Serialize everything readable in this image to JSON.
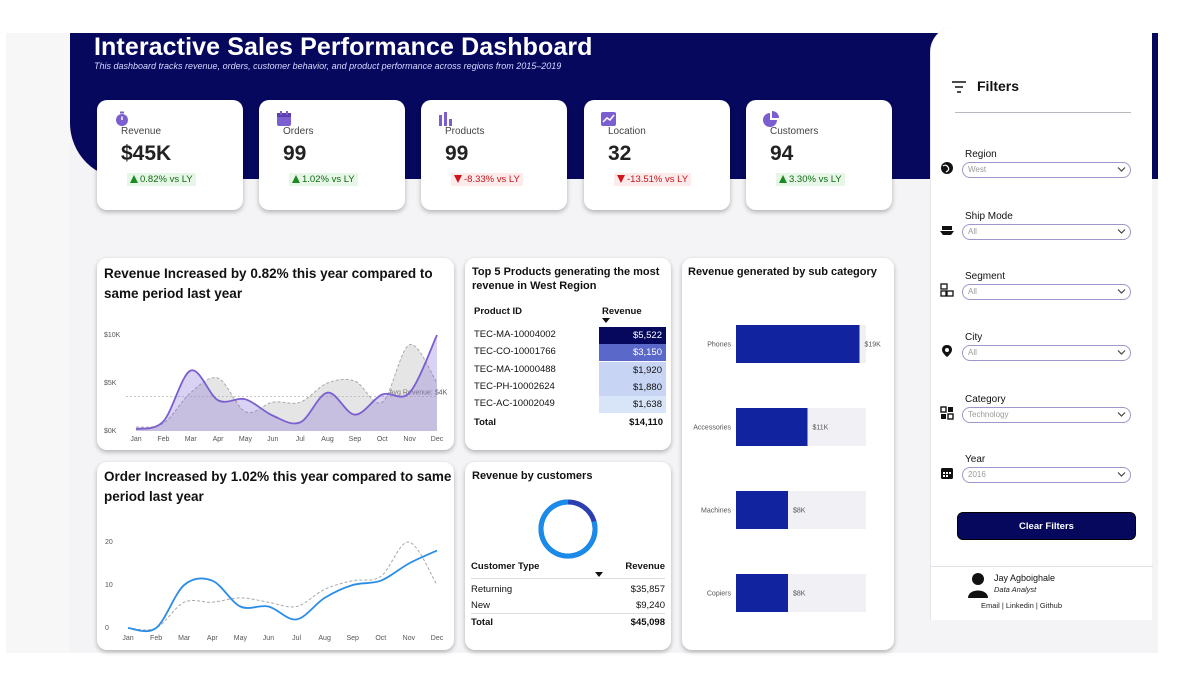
{
  "header": {
    "title": "Interactive Sales Performance Dashboard",
    "subtitle": "This dashboard tracks revenue, orders, customer behavior, and product performance across regions from 2015–2019"
  },
  "kpis": [
    {
      "label": "Revenue",
      "value": "$45K",
      "delta": "0.82% vs LY",
      "trend": "up",
      "icon": "stopwatch-icon"
    },
    {
      "label": "Orders",
      "value": "99",
      "delta": "1.02% vs LY",
      "trend": "up",
      "icon": "calendar-icon"
    },
    {
      "label": "Products",
      "value": "99",
      "delta": "-8.33% vs LY",
      "trend": "down",
      "icon": "bar-chart-icon"
    },
    {
      "label": "Location",
      "value": "32",
      "delta": "-13.51% vs LY",
      "trend": "down",
      "icon": "map-trend-icon"
    },
    {
      "label": "Customers",
      "value": "94",
      "delta": "3.30% vs LY",
      "trend": "up",
      "icon": "pie-chart-icon"
    }
  ],
  "colors": {
    "navy": "#06085e",
    "purple": "#7b5fd0",
    "blue_line": "#2b8de5",
    "bar_blue": "#1223a0",
    "up_green": "#0c6b12",
    "down_red": "#c0181c"
  },
  "revenue_chart": {
    "title": "Revenue Increased by 0.82% this year compared to same period last year",
    "avg_label": "Avg Revenue: $4K"
  },
  "orders_chart": {
    "title": "Order Increased by 1.02% this year compared to same period last year"
  },
  "top_products": {
    "title": "Top 5 Products generating the most revenue in West Region",
    "col_product": "Product ID",
    "col_revenue": "Revenue",
    "rows": [
      {
        "id": "TEC-MA-10004002",
        "revenue": "$5,522",
        "value": 5522
      },
      {
        "id": "TEC-CO-10001766",
        "revenue": "$3,150",
        "value": 3150
      },
      {
        "id": "TEC-MA-10000488",
        "revenue": "$1,920",
        "value": 1920
      },
      {
        "id": "TEC-PH-10002624",
        "revenue": "$1,880",
        "value": 1880
      },
      {
        "id": "TEC-AC-10002049",
        "revenue": "$1,638",
        "value": 1638
      }
    ],
    "total_label": "Total",
    "total_value": "$14,110"
  },
  "customers": {
    "title": "Revenue by customers",
    "col_type": "Customer Type",
    "col_revenue": "Revenue",
    "rows": [
      {
        "type": "Returning",
        "revenue": "$35,857"
      },
      {
        "type": "New",
        "revenue": "$9,240"
      }
    ],
    "total_label": "Total",
    "total_value": "$45,098",
    "returning_share": 0.795
  },
  "filters": {
    "title": "Filters",
    "items": [
      {
        "label": "Region",
        "value": "West",
        "icon": "globe-icon"
      },
      {
        "label": "Ship Mode",
        "value": "All",
        "icon": "ship-icon"
      },
      {
        "label": "Segment",
        "value": "All",
        "icon": "segment-icon"
      },
      {
        "label": "City",
        "value": "All",
        "icon": "location-pin-icon"
      },
      {
        "label": "Category",
        "value": "Technology",
        "icon": "category-icon"
      },
      {
        "label": "Year",
        "value": "2016",
        "icon": "calendar-grid-icon"
      }
    ],
    "clear_label": "Clear Filters"
  },
  "author": {
    "name": "Jay Agboighale",
    "role": "Data Analyst",
    "links": "Email | Linkedin | Github"
  },
  "chart_data": [
    {
      "type": "area",
      "title": "Revenue Increased by 0.82% this year compared to same period last year",
      "categories": [
        "Jan",
        "Feb",
        "Mar",
        "Apr",
        "May",
        "Jun",
        "Jul",
        "Aug",
        "Sep",
        "Oct",
        "Nov",
        "Dec"
      ],
      "ytick_labels": [
        "$0K",
        "$5K",
        "$10K"
      ],
      "ylim": [
        0,
        10
      ],
      "series": [
        {
          "values": [
            0.2,
            1.0,
            6.3,
            3.2,
            3.3,
            1.6,
            0.9,
            4.0,
            1.7,
            3.8,
            4.0,
            10.0
          ]
        },
        {
          "values": [
            0.4,
            0.8,
            4.0,
            5.5,
            2.0,
            3.0,
            3.0,
            5.0,
            5.2,
            3.0,
            9.0,
            5.0
          ],
          "dashed": true
        }
      ],
      "reference_line": {
        "value": 3.6,
        "label": "Avg Revenue: $4K"
      },
      "grid": false
    },
    {
      "type": "line",
      "title": "Order Increased by 1.02% this year compared to same period last year",
      "categories": [
        "Jan",
        "Feb",
        "Mar",
        "Apr",
        "May",
        "Jun",
        "Jul",
        "Aug",
        "Sep",
        "Oct",
        "Nov",
        "Dec"
      ],
      "ytick_labels": [
        "0",
        "10",
        "20"
      ],
      "ylim": [
        0,
        20
      ],
      "series": [
        {
          "values": [
            0,
            0,
            10,
            11,
            5,
            5,
            2,
            7,
            10,
            11,
            15,
            18
          ]
        },
        {
          "values": [
            0,
            0,
            6,
            6,
            7,
            6,
            5,
            9,
            11,
            12,
            20,
            10
          ],
          "dashed": true
        }
      ],
      "grid": false
    },
    {
      "type": "bar",
      "orientation": "horizontal",
      "title": "Revenue generated by sub category",
      "categories": [
        "Phones",
        "Accessories",
        "Machines",
        "Copiers"
      ],
      "values": [
        19,
        11,
        8,
        8
      ],
      "value_labels": [
        "$19K",
        "$11K",
        "$8K",
        "$8K"
      ],
      "xlim": [
        0,
        20
      ]
    }
  ]
}
